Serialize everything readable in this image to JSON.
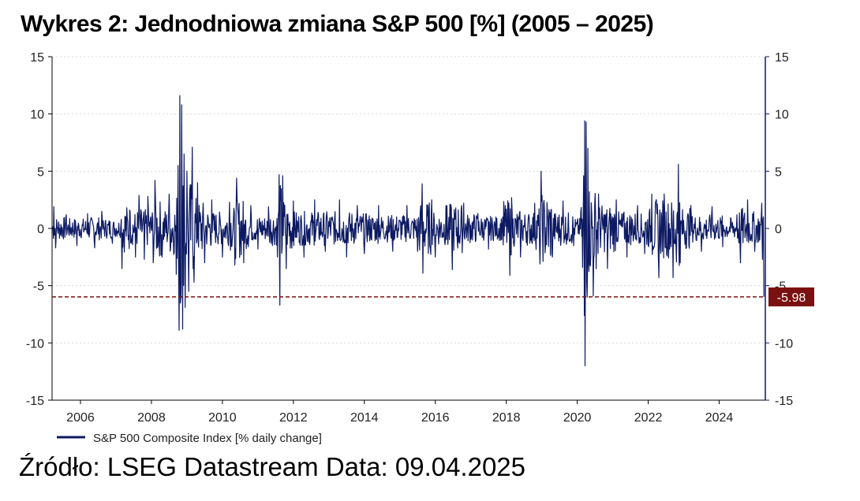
{
  "title": "Wykres 2: Jednodniowa zmiana S&P 500 [%] (2005 – 2025)",
  "source": "Źródło: LSEG Datastream Data: 09.04.2025",
  "colors": {
    "series": "#0d1a63",
    "reference": "#7b1010",
    "label_bg": "#7b1010",
    "grid": "#d9d9d9"
  },
  "chart_data": {
    "type": "line",
    "series": [
      {
        "name": "S&P 500 Composite Index [% daily change]",
        "note_values": "approximate envelope of daily % changes read from chart",
        "points": [
          [
            2005.2,
            0.0
          ],
          [
            2005.25,
            1.9
          ],
          [
            2005.3,
            -1.7
          ],
          [
            2005.6,
            1.2
          ],
          [
            2005.9,
            -1.5
          ],
          [
            2006.2,
            1.3
          ],
          [
            2006.4,
            -1.7
          ],
          [
            2006.6,
            1.5
          ],
          [
            2006.9,
            -1.3
          ],
          [
            2007.15,
            0.8
          ],
          [
            2007.17,
            -3.5
          ],
          [
            2007.4,
            1.5
          ],
          [
            2007.55,
            -2.5
          ],
          [
            2007.65,
            2.9
          ],
          [
            2007.8,
            -2.7
          ],
          [
            2007.9,
            2.8
          ],
          [
            2008.05,
            -3.0
          ],
          [
            2008.1,
            4.2
          ],
          [
            2008.3,
            -2.5
          ],
          [
            2008.5,
            3.0
          ],
          [
            2008.7,
            -4.0
          ],
          [
            2008.75,
            5.5
          ],
          [
            2008.78,
            -8.9
          ],
          [
            2008.8,
            11.6
          ],
          [
            2008.83,
            -6.0
          ],
          [
            2008.85,
            10.8
          ],
          [
            2008.88,
            -8.8
          ],
          [
            2008.92,
            6.5
          ],
          [
            2008.95,
            -6.9
          ],
          [
            2009.0,
            5.0
          ],
          [
            2009.05,
            -5.5
          ],
          [
            2009.15,
            7.1
          ],
          [
            2009.2,
            -4.7
          ],
          [
            2009.3,
            4.0
          ],
          [
            2009.5,
            -3.0
          ],
          [
            2009.7,
            2.5
          ],
          [
            2010.0,
            -2.5
          ],
          [
            2010.2,
            2.3
          ],
          [
            2010.35,
            -3.2
          ],
          [
            2010.4,
            4.4
          ],
          [
            2010.6,
            -3.0
          ],
          [
            2010.8,
            2.0
          ],
          [
            2011.0,
            -1.8
          ],
          [
            2011.3,
            1.9
          ],
          [
            2011.55,
            -2.5
          ],
          [
            2011.6,
            4.7
          ],
          [
            2011.62,
            -6.7
          ],
          [
            2011.7,
            4.6
          ],
          [
            2011.8,
            -3.5
          ],
          [
            2012.0,
            2.4
          ],
          [
            2012.3,
            -2.5
          ],
          [
            2012.6,
            2.5
          ],
          [
            2012.9,
            -2.0
          ],
          [
            2013.3,
            2.5
          ],
          [
            2013.5,
            -2.5
          ],
          [
            2013.8,
            2.0
          ],
          [
            2014.0,
            -2.2
          ],
          [
            2014.4,
            2.0
          ],
          [
            2014.8,
            -2.0
          ],
          [
            2015.2,
            2.0
          ],
          [
            2015.5,
            -2.0
          ],
          [
            2015.63,
            3.9
          ],
          [
            2015.65,
            -3.9
          ],
          [
            2015.9,
            2.5
          ],
          [
            2016.0,
            -2.5
          ],
          [
            2016.3,
            2.0
          ],
          [
            2016.48,
            -3.6
          ],
          [
            2016.8,
            2.2
          ],
          [
            2017.2,
            1.3
          ],
          [
            2017.5,
            -1.8
          ],
          [
            2017.9,
            1.0
          ],
          [
            2018.1,
            -4.1
          ],
          [
            2018.15,
            2.7
          ],
          [
            2018.4,
            -2.5
          ],
          [
            2018.8,
            2.2
          ],
          [
            2018.95,
            -3.1
          ],
          [
            2018.98,
            5.0
          ],
          [
            2019.3,
            -2.5
          ],
          [
            2019.6,
            2.4
          ],
          [
            2019.9,
            -1.5
          ],
          [
            2020.1,
            1.5
          ],
          [
            2020.15,
            -3.4
          ],
          [
            2020.18,
            4.6
          ],
          [
            2020.2,
            -7.6
          ],
          [
            2020.21,
            9.4
          ],
          [
            2020.22,
            -12.0
          ],
          [
            2020.25,
            9.3
          ],
          [
            2020.28,
            -6.0
          ],
          [
            2020.3,
            7.0
          ],
          [
            2020.45,
            -5.9
          ],
          [
            2020.6,
            3.0
          ],
          [
            2020.85,
            -3.5
          ],
          [
            2021.1,
            2.5
          ],
          [
            2021.4,
            -2.5
          ],
          [
            2021.7,
            2.0
          ],
          [
            2021.9,
            -2.2
          ],
          [
            2022.1,
            3.0
          ],
          [
            2022.3,
            -4.3
          ],
          [
            2022.45,
            3.0
          ],
          [
            2022.7,
            -4.3
          ],
          [
            2022.85,
            5.6
          ],
          [
            2022.9,
            -3.0
          ],
          [
            2023.2,
            2.0
          ],
          [
            2023.5,
            -2.0
          ],
          [
            2023.8,
            1.9
          ],
          [
            2024.1,
            -1.6
          ],
          [
            2024.5,
            1.2
          ],
          [
            2024.6,
            -3.0
          ],
          [
            2024.8,
            2.5
          ],
          [
            2025.0,
            -2.0
          ],
          [
            2025.2,
            2.2
          ],
          [
            2025.22,
            -2.7
          ],
          [
            2025.26,
            -5.98
          ]
        ]
      }
    ],
    "reference_line": {
      "y": -5.98,
      "label": "-5.98"
    },
    "xlim": [
      2005.2,
      2025.3
    ],
    "ylim": [
      -15,
      15
    ],
    "x_ticks": [
      "2006",
      "2008",
      "2010",
      "2012",
      "2014",
      "2016",
      "2018",
      "2020",
      "2022",
      "2024"
    ],
    "x_tick_values": [
      2006,
      2008,
      2010,
      2012,
      2014,
      2016,
      2018,
      2020,
      2022,
      2024
    ],
    "y_ticks_left": [
      "15",
      "10",
      "5",
      "0",
      "-5",
      "-10",
      "-15"
    ],
    "y_ticks_right": [
      "15",
      "10",
      "5",
      "0",
      "-5",
      "-10",
      "-15"
    ],
    "y_tick_values": [
      15,
      10,
      5,
      0,
      -5,
      -10,
      -15
    ],
    "grid": true,
    "legend": {
      "position": "bottom-left",
      "label": "S&P 500 Composite Index [% daily change]"
    },
    "xlabel": "",
    "ylabel": ""
  }
}
